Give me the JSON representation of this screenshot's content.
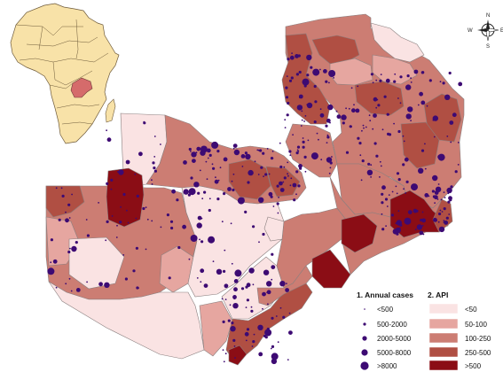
{
  "colors": {
    "background": "#ffffff",
    "district_border": "#8a7f7f",
    "country_border": "#5a4a4a",
    "dot": "#3d0a73",
    "inset_land": "#f8e2a8",
    "inset_highlight": "#d56b6b",
    "inset_ocean": "#ffffff",
    "api_classes": [
      "#fae3e3",
      "#e6a6a0",
      "#cc7d73",
      "#b04f43",
      "#8b0d15"
    ]
  },
  "legend": {
    "cases_title": "1. Annual cases",
    "cases_classes": [
      "<500",
      "500-2000",
      "2000-5000",
      "5000-8000",
      ">8000"
    ],
    "api_title": "2. API",
    "api_classes": [
      "<50",
      "50-100",
      "100-250",
      "250-500",
      ">500"
    ]
  },
  "compass": {
    "n": "N",
    "s": "S",
    "e": "E",
    "w": "W",
    "icon": "compass-rose-icon"
  },
  "inset": {
    "icon": "africa-locator-map",
    "highlight": "zambia"
  }
}
